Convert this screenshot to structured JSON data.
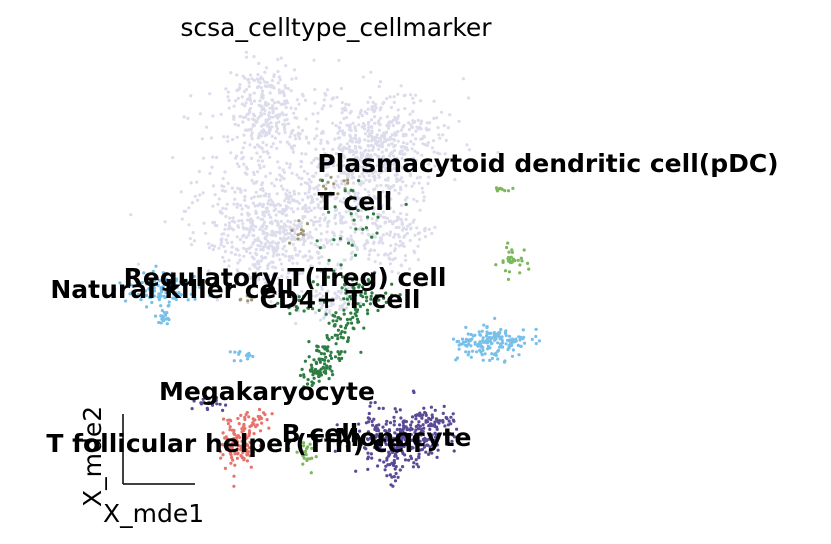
{
  "chart_data": {
    "type": "scatter",
    "title": "scsa_celltype_cellmarker",
    "xlabel": "X_mde1",
    "ylabel": "X_mde2",
    "grid": false,
    "legend": "on data",
    "series": [
      {
        "name": "T cell",
        "color": "#dcdcec"
      },
      {
        "name": "Plasmacytoid dendritic cell(pDC)",
        "color": "#7ab85a"
      },
      {
        "name": "Regulatory T(Treg) cell",
        "color": "#9e9674"
      },
      {
        "name": "CD4+ T cell",
        "color": "#2e7d43"
      },
      {
        "name": "Natural killer cell",
        "color": "#78c0ea"
      },
      {
        "name": "Megakaryocyte",
        "color": "#5b4a96"
      },
      {
        "name": "T follicular helper(Tfh) cell",
        "color": "#e7736b"
      },
      {
        "name": "B cell",
        "color": "#7ab85a"
      },
      {
        "name": "Monocyte",
        "color": "#5b4a96"
      }
    ]
  }
}
